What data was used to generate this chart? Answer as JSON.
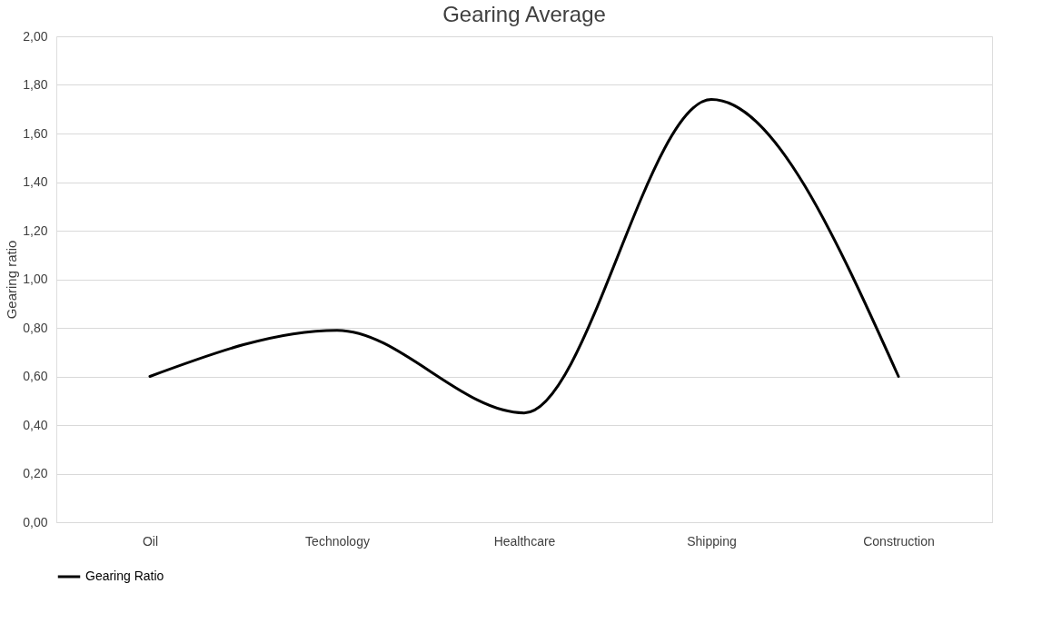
{
  "chart_data": {
    "type": "line",
    "title": "Gearing Average",
    "ylabel": "Gearing ratio",
    "categories": [
      "Oil",
      "Technology",
      "Healthcare",
      "Shipping",
      "Construction"
    ],
    "series": [
      {
        "name": "Gearing Ratio",
        "color": "#000000",
        "values": [
          0.6,
          0.79,
          0.45,
          1.74,
          0.6
        ]
      }
    ],
    "ylim": [
      0,
      2
    ],
    "yticks": [
      {
        "value": 0,
        "label": "0,00"
      },
      {
        "value": 0.2,
        "label": "0,20"
      },
      {
        "value": 0.4,
        "label": "0,40"
      },
      {
        "value": 0.6,
        "label": "0,60"
      },
      {
        "value": 0.8,
        "label": "0,80"
      },
      {
        "value": 1.0,
        "label": "1,00"
      },
      {
        "value": 1.2,
        "label": "1,20"
      },
      {
        "value": 1.4,
        "label": "1,40"
      },
      {
        "value": 1.6,
        "label": "1,60"
      },
      {
        "value": 1.8,
        "label": "1,80"
      },
      {
        "value": 2.0,
        "label": "2,00"
      }
    ],
    "grid": "y",
    "legend": "bottom",
    "marker": "none",
    "line_style": "solid"
  }
}
